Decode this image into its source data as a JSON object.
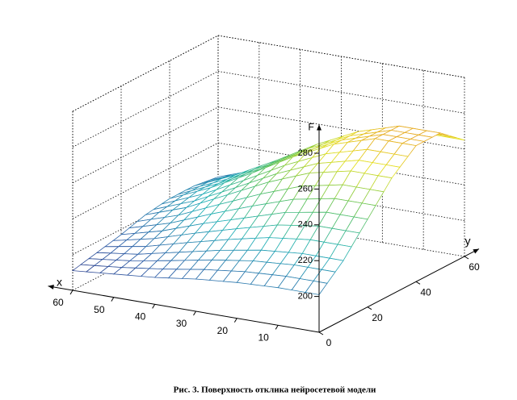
{
  "caption": "Рис. 3. Поверхность отклика нейросетевой модели",
  "chart_data": {
    "type": "surface",
    "x_label": "x",
    "y_label": "y",
    "z_label": "F",
    "x": [
      0,
      10,
      20,
      30,
      40,
      50,
      60
    ],
    "y": [
      0,
      10,
      20,
      30,
      40,
      50,
      60
    ],
    "z": [
      [
        201,
        213,
        229,
        245,
        256,
        256,
        245
      ],
      [
        201,
        213,
        229,
        245,
        256,
        256,
        245
      ],
      [
        200,
        211,
        225,
        240,
        249,
        249,
        240
      ],
      [
        198,
        207,
        218,
        231,
        238,
        238,
        231
      ],
      [
        195,
        202,
        211,
        220,
        225,
        225,
        220
      ],
      [
        193,
        197,
        203,
        209,
        213,
        213,
        209
      ],
      [
        191,
        194,
        197,
        201,
        203,
        203,
        201
      ]
    ],
    "xlim": [
      0,
      60
    ],
    "ylim": [
      0,
      60
    ],
    "zlim": [
      180,
      280
    ],
    "xticks": [
      10,
      20,
      30,
      40,
      50,
      60
    ],
    "yticks": [
      0,
      20,
      40,
      60
    ],
    "zticks": [
      200,
      220,
      240,
      260,
      280
    ],
    "grid": true,
    "colormap": [
      "#2a0a5e",
      "#2e5fa8",
      "#22b0b8",
      "#5cc25a",
      "#e4e020",
      "#e88020",
      "#c41a10"
    ]
  }
}
